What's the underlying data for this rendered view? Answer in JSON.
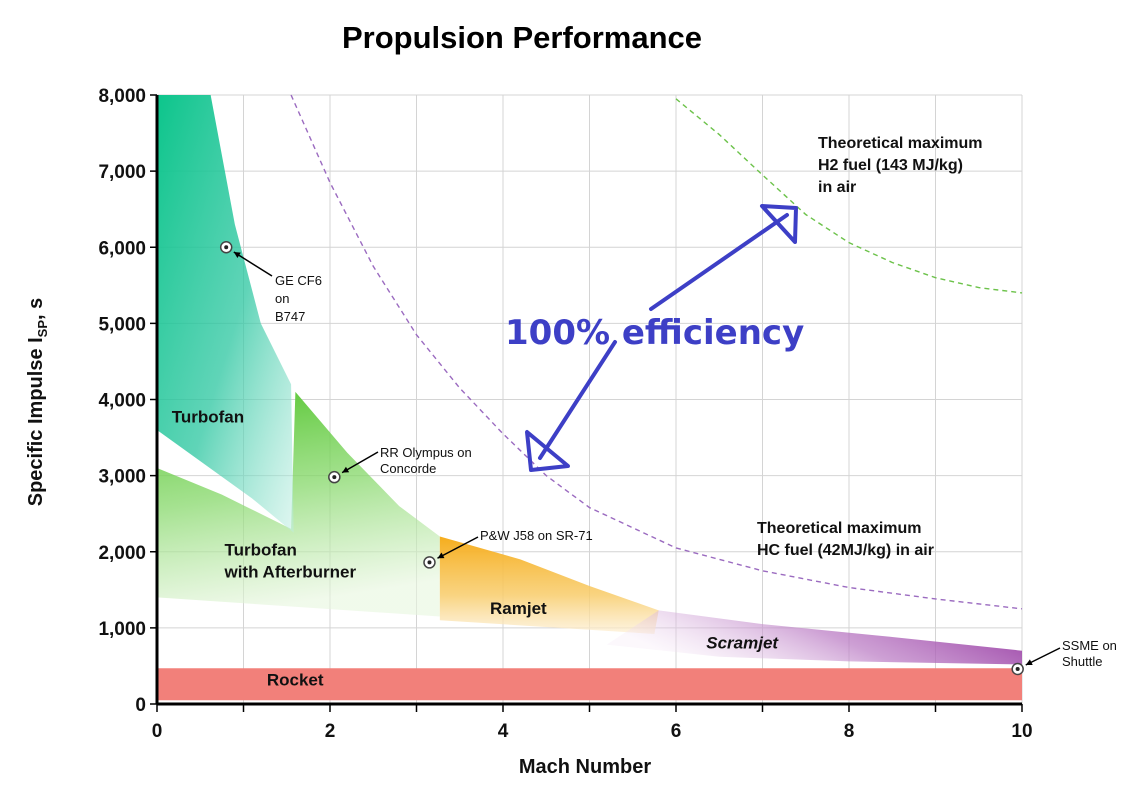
{
  "chart_data": {
    "type": "area",
    "title": "Propulsion Performance",
    "xlabel": "Mach Number",
    "ylabel_main": "Specific Impulse I",
    "ylabel_sub": "SP",
    "ylabel_unit": ", s",
    "xlim": [
      0,
      10
    ],
    "ylim": [
      0,
      8000
    ],
    "x_ticks": [
      0,
      2,
      4,
      6,
      8,
      10
    ],
    "y_ticks": [
      0,
      1000,
      2000,
      3000,
      4000,
      5000,
      6000,
      7000,
      8000
    ],
    "y_tick_labels": [
      "0",
      "1,000",
      "2,000",
      "3,000",
      "4,000",
      "5,000",
      "6,000",
      "7,000",
      "8,000"
    ],
    "x_grid_step": 1,
    "grid": true,
    "colors": {
      "turbofan": "#0cc58b",
      "afterburner": "#52c42c",
      "ramjet": "#f7b52a",
      "scramjet": "#8e2b9a",
      "rocket": "#f2807a",
      "h2_curve": "#6cc24a",
      "hc_curve": "#9b6bc0",
      "arrow": "#3d3fc6"
    },
    "regions": [
      {
        "name": "Turbofan",
        "label": "Turbofan",
        "label_at": [
          0.17,
          3700
        ],
        "polygon": [
          [
            0,
            8000
          ],
          [
            0.62,
            8000
          ],
          [
            0.9,
            6300
          ],
          [
            1.2,
            5000
          ],
          [
            1.55,
            4200
          ],
          [
            1.58,
            2250
          ],
          [
            1.1,
            2700
          ],
          [
            0,
            3600
          ]
        ]
      },
      {
        "name": "Turbofan with Afterburner",
        "label": "Turbofan",
        "label2": "with Afterburner",
        "label_at": [
          0.78,
          1950
        ],
        "polygon": [
          [
            0,
            3100
          ],
          [
            0.75,
            2750
          ],
          [
            1.55,
            2300
          ],
          [
            1.6,
            4100
          ],
          [
            2.2,
            3300
          ],
          [
            2.8,
            2600
          ],
          [
            3.27,
            2200
          ],
          [
            3.27,
            1150
          ],
          [
            0,
            1400
          ]
        ]
      },
      {
        "name": "Ramjet",
        "label": "Ramjet",
        "label_at": [
          3.85,
          1180
        ],
        "polygon": [
          [
            3.27,
            2200
          ],
          [
            4.2,
            1900
          ],
          [
            5.0,
            1550
          ],
          [
            5.8,
            1230
          ],
          [
            5.75,
            920
          ],
          [
            3.27,
            1100
          ]
        ]
      },
      {
        "name": "Scramjet",
        "label": "Scramjet",
        "label_at": [
          6.35,
          730
        ],
        "polygon": [
          [
            5.8,
            1230
          ],
          [
            7,
            1050
          ],
          [
            8.5,
            880
          ],
          [
            10,
            700
          ],
          [
            10,
            520
          ],
          [
            8,
            560
          ],
          [
            6.5,
            620
          ],
          [
            5.2,
            780
          ]
        ]
      },
      {
        "name": "Rocket",
        "label": "Rocket",
        "label_at": [
          1.27,
          240
        ],
        "polygon": [
          [
            0,
            470
          ],
          [
            10,
            470
          ],
          [
            10,
            50
          ],
          [
            0,
            50
          ]
        ]
      }
    ],
    "curves": [
      {
        "name": "Theoretical maximum H2 fuel (143 MJ/kg) in air",
        "style": "dashed",
        "x": [
          6.0,
          6.5,
          7.0,
          7.5,
          8.0,
          8.5,
          9.0,
          9.5,
          10.0
        ],
        "y": [
          7950,
          7480,
          6950,
          6430,
          6060,
          5800,
          5600,
          5470,
          5400
        ]
      },
      {
        "name": "Theoretical maximum HC fuel (42MJ/kg) in air",
        "style": "dashed",
        "x": [
          1.55,
          2.0,
          2.5,
          3.0,
          3.5,
          4.0,
          4.5,
          5.0,
          6.0,
          7.0,
          8.0,
          9.0,
          10.0
        ],
        "y": [
          8000,
          6850,
          5750,
          4850,
          4150,
          3550,
          3000,
          2580,
          2050,
          1750,
          1530,
          1380,
          1250
        ]
      }
    ],
    "points": [
      {
        "name": "GE CF6 on B747",
        "x": 0.8,
        "y": 6000,
        "label_lines": [
          "GE CF6",
          "on",
          "B747"
        ]
      },
      {
        "name": "RR Olympus on Concorde",
        "x": 2.05,
        "y": 2980,
        "label_lines": [
          "RR Olympus on",
          "Concorde"
        ]
      },
      {
        "name": "P&W J58 on SR-71",
        "x": 3.15,
        "y": 1860,
        "label_lines": [
          "P&W J58 on SR-71"
        ]
      },
      {
        "name": "SSME on Shuttle",
        "x": 9.95,
        "y": 460,
        "label_lines": [
          "SSME on",
          "Shuttle"
        ]
      }
    ],
    "annotations": {
      "h2_note": [
        "Theoretical maximum",
        "H2 fuel (143 MJ/kg)",
        "in air"
      ],
      "hc_note": [
        "Theoretical maximum",
        "HC fuel (42MJ/kg) in air"
      ],
      "efficiency": "100% efficiency"
    }
  }
}
